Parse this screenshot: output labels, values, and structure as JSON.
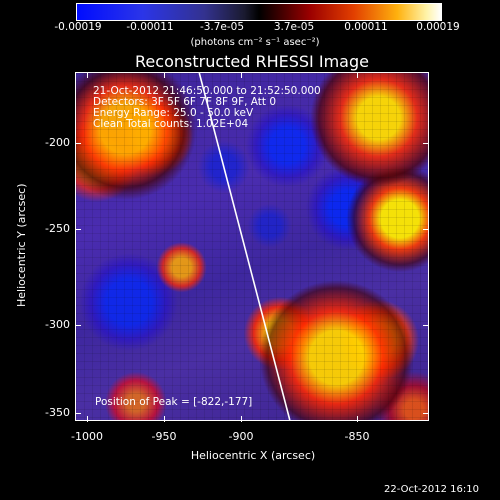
{
  "colorbar": {
    "ticks": [
      "-0.00019",
      "-0.00011",
      "-3.7e-05",
      "3.7e-05",
      "0.00011",
      "0.00019"
    ],
    "units": "(photons cm⁻² s⁻¹ asec⁻²)"
  },
  "image": {
    "title": "Reconstructed RHESSI Image",
    "info": [
      "21-Oct-2012 21:46:50.000 to 21:52:50.000",
      "Detectors: 3F 5F 6F 7F 8F 9F, Att 0",
      "Energy Range: 25.0 - 50.0 keV",
      "Clean     Total counts: 1.02E+04"
    ],
    "peak": "Position of Peak = [-822,-177]"
  },
  "axes": {
    "x_label": "Heliocentric X (arcsec)",
    "y_label": "Heliocentric Y (arcsec)",
    "x_ticks": [
      "-1000",
      "-950",
      "-900",
      "-850"
    ],
    "y_ticks": [
      "-200",
      "-250",
      "-300",
      "-350"
    ]
  },
  "footer": {
    "date": "22-Oct-2012 16:10"
  }
}
